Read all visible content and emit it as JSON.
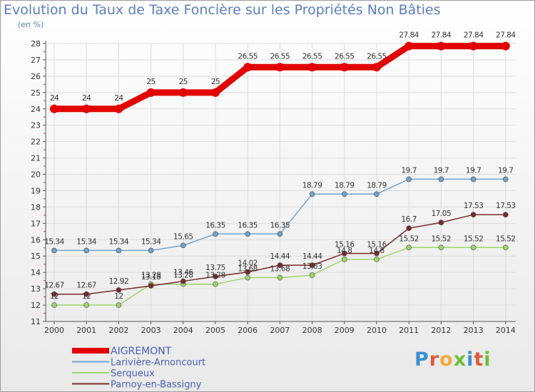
{
  "title": "Evolution du Taux de Taxe Foncière sur les Propriétés Non Bâties",
  "unit_label": "(en %)",
  "logo": {
    "text": "Proxiti",
    "colors": [
      "#3a8fd2",
      "#e25d3b",
      "#f2a93b",
      "#6fbf3a",
      "#3a8fd2",
      "#e25d3b",
      "#6fbf3a"
    ]
  },
  "chart_data": {
    "type": "line",
    "title": "Evolution du Taux de Taxe Foncière sur les Propriétés Non Bâties",
    "ylabel": "(en %)",
    "xlabel": "",
    "x": [
      "2000",
      "2001",
      "2002",
      "2003",
      "2004",
      "2005",
      "2006",
      "2007",
      "2008",
      "2009",
      "2010",
      "2011",
      "2012",
      "2013",
      "2014"
    ],
    "ylim": [
      11,
      28
    ],
    "yticks": [
      11,
      12,
      13,
      14,
      15,
      16,
      17,
      18,
      19,
      20,
      21,
      22,
      23,
      24,
      25,
      26,
      27,
      28
    ],
    "grid": true,
    "legend_position": "bottom-left",
    "series": [
      {
        "name": "AIGREMONT",
        "color": "#e20000",
        "width": 9,
        "marker_r": 6,
        "values": [
          24,
          24,
          24,
          25,
          25,
          25,
          26.55,
          26.55,
          26.55,
          26.55,
          26.55,
          27.84,
          27.84,
          27.84,
          27.84
        ],
        "labels": [
          "24",
          "24",
          "24",
          "25",
          "25",
          "25",
          "26.55",
          "26.55",
          "26.55",
          "26.55",
          "26.55",
          "27.84",
          "27.84",
          "27.84",
          "27.84"
        ]
      },
      {
        "name": "Larivière-Arnoncourt",
        "color": "#6fa3d0",
        "width": 1.5,
        "marker_r": 3.5,
        "values": [
          15.34,
          15.34,
          15.34,
          15.34,
          15.65,
          16.35,
          16.35,
          16.35,
          18.79,
          18.79,
          18.79,
          19.7,
          19.7,
          19.7,
          19.7
        ],
        "labels": [
          "15.34",
          "15.34",
          "15.34",
          "15.34",
          "15.65",
          "16.35",
          "16.35",
          "16.35",
          "18.79",
          "18.79",
          "18.79",
          "19.7",
          "19.7",
          "19.7",
          "19.7"
        ]
      },
      {
        "name": "Serqueux",
        "color": "#9ad66a",
        "width": 1.5,
        "marker_r": 3.5,
        "values": [
          12,
          12,
          12,
          13.28,
          13.28,
          13.28,
          13.68,
          13.68,
          13.83,
          14.8,
          14.8,
          15.52,
          15.52,
          15.52,
          15.52
        ],
        "labels": [
          "12",
          "12",
          "12",
          "13.28",
          "13.28",
          "13.28",
          "13.68",
          "13.68",
          "13.83",
          "14.8",
          "14.8",
          "15.52",
          "15.52",
          "15.52",
          "15.52"
        ]
      },
      {
        "name": "Parnoy-en-Bassigny",
        "color": "#7a2a2a",
        "width": 1.5,
        "marker_r": 3.5,
        "values": [
          12.67,
          12.67,
          12.92,
          13.18,
          13.46,
          13.75,
          14.02,
          14.44,
          14.44,
          15.16,
          15.16,
          16.7,
          17.05,
          17.53,
          17.53
        ],
        "labels": [
          "12.67",
          "12.67",
          "12.92",
          "13.18",
          "13.46",
          "13.75",
          "14.02",
          "14.44",
          "14.44",
          "15.16",
          "15.16",
          "16.7",
          "17.05",
          "17.53",
          "17.53"
        ]
      }
    ]
  }
}
